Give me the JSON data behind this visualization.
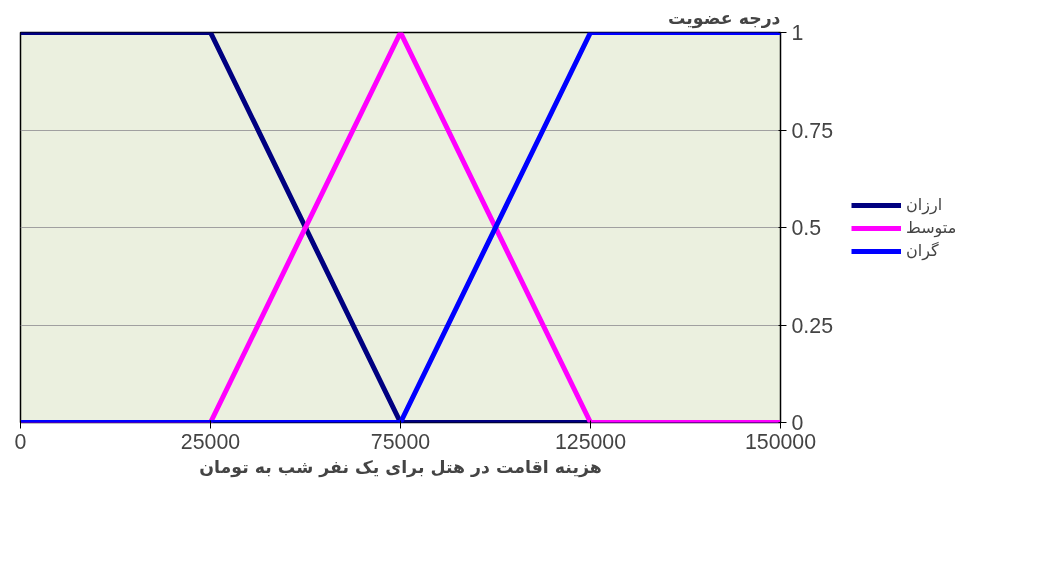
{
  "chart_data": {
    "type": "line",
    "xlabel": "هزینه اقامت در هتل برای یک نفر شب به تومان",
    "ylabel": "درجه عضویت",
    "categories": [
      "0",
      "25000",
      "75000",
      "125000",
      "150000"
    ],
    "series": [
      {
        "name": "ارزان",
        "color": "#000080",
        "values": [
          1,
          1,
          0,
          0,
          0
        ]
      },
      {
        "name": "متوسط",
        "color": "#ff00ff",
        "values": [
          0,
          0,
          1,
          0,
          0
        ]
      },
      {
        "name": "گران",
        "color": "#0000ff",
        "values": [
          0,
          0,
          0,
          1,
          1
        ]
      }
    ],
    "ylim": [
      0,
      1
    ],
    "yticks": [
      0,
      0.25,
      0.5,
      0.75,
      1
    ],
    "grid": "y",
    "legend": "right",
    "marker": "none",
    "line_style": "solid"
  }
}
